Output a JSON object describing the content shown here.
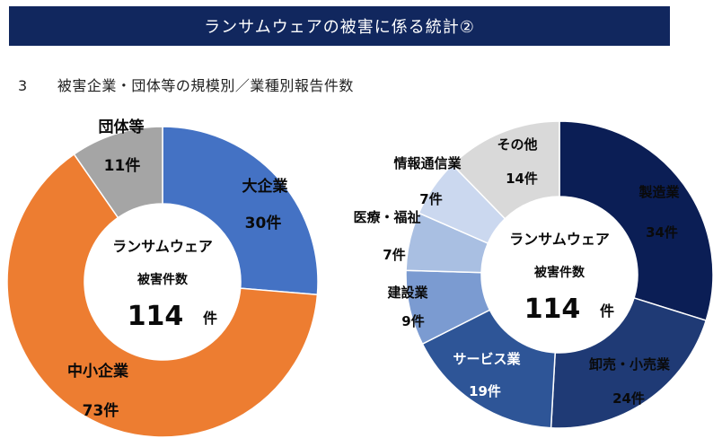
{
  "banner": {
    "title": "ランサムウェアの被害に係る統計②"
  },
  "heading": {
    "number": "3",
    "text": "被害企業・団体等の規模別／業種別報告件数"
  },
  "colors": {
    "banner_bg": "#11275e"
  },
  "chart_data": [
    {
      "type": "pie",
      "variant": "donut",
      "title": "",
      "center_label": {
        "line1": "ランサムウェア",
        "line2": "被害件数",
        "total": "114",
        "unit": "件"
      },
      "slices": [
        {
          "name": "大企業",
          "value": 30,
          "value_label": "30件",
          "color": "#4472c4"
        },
        {
          "name": "中小企業",
          "value": 73,
          "value_label": "73件",
          "color": "#ed7d31"
        },
        {
          "name": "団体等",
          "value": 11,
          "value_label": "11件",
          "color": "#a5a5a5"
        }
      ]
    },
    {
      "type": "pie",
      "variant": "donut",
      "title": "",
      "center_label": {
        "line1": "ランサムウェア",
        "line2": "被害件数",
        "total": "114",
        "unit": "件"
      },
      "slices": [
        {
          "name": "製造業",
          "value": 34,
          "value_label": "34件",
          "color": "#0b1e55"
        },
        {
          "name": "卸売・小売業",
          "value": 24,
          "value_label": "24件",
          "color": "#1f3a75"
        },
        {
          "name": "サービス業",
          "value": 19,
          "value_label": "19件",
          "color": "#2e5597"
        },
        {
          "name": "建設業",
          "value": 9,
          "value_label": "9件",
          "color": "#7b9bd1"
        },
        {
          "name": "医療・福祉",
          "value": 7,
          "value_label": "7件",
          "color": "#a9bfe2"
        },
        {
          "name": "情報通信業",
          "value": 7,
          "value_label": "7件",
          "color": "#cbd8ef"
        },
        {
          "name": "その他",
          "value": 14,
          "value_label": "14件",
          "color": "#d9d9d9"
        }
      ]
    }
  ]
}
